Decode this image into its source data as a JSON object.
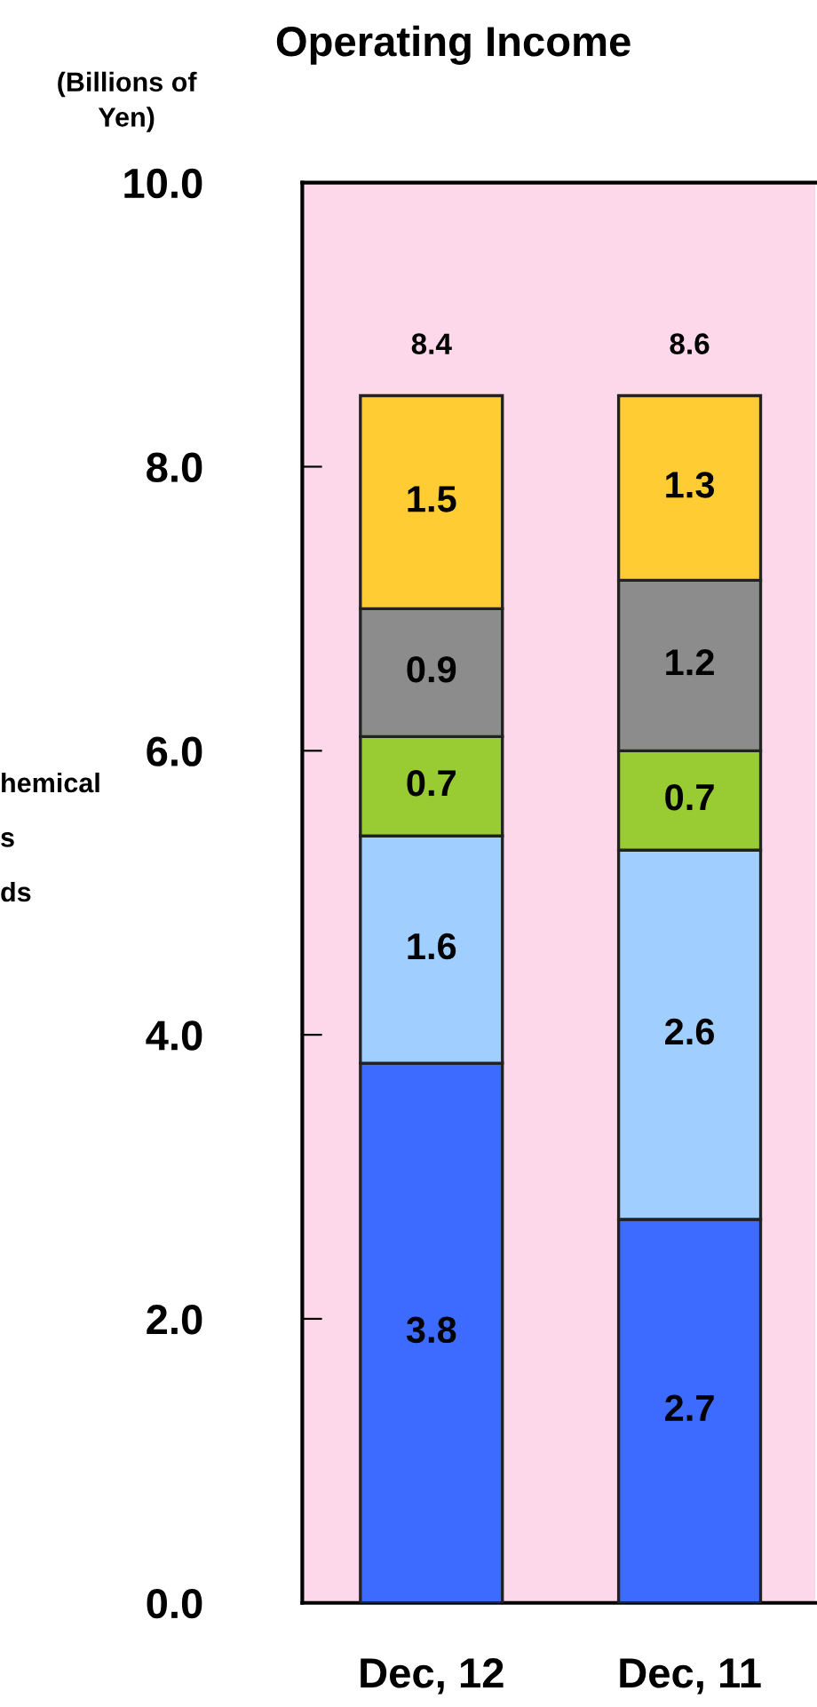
{
  "chart_data": {
    "type": "bar",
    "title": "Operating Income",
    "ylabel": "(Billions of\nYen)",
    "categories": [
      "Dec, 12",
      "Dec, 11"
    ],
    "stacked": true,
    "series": [
      {
        "color": "#3d6bff",
        "values": [
          3.8,
          2.7
        ]
      },
      {
        "color": "#a0cfff",
        "values": [
          1.6,
          2.6
        ]
      },
      {
        "color": "#99cc33",
        "values": [
          0.7,
          0.7
        ]
      },
      {
        "color": "#8c8c8c",
        "values": [
          0.9,
          1.2
        ]
      },
      {
        "color": "#ffcc33",
        "values": [
          1.5,
          1.3
        ]
      }
    ],
    "data_labels": true,
    "totals": [
      "8.4",
      "8.6"
    ],
    "ylim": [
      0,
      10
    ],
    "yticks": [
      {
        "value": 0,
        "label": "0.0"
      },
      {
        "value": 2,
        "label": "2.0"
      },
      {
        "value": 4,
        "label": "4.0"
      },
      {
        "value": 6,
        "label": "6.0"
      },
      {
        "value": 8,
        "label": "8.0"
      },
      {
        "value": 10,
        "label": "10.0"
      }
    ],
    "grid": false,
    "legend": false,
    "annotations": [
      "hemical",
      "s",
      "ds"
    ]
  }
}
